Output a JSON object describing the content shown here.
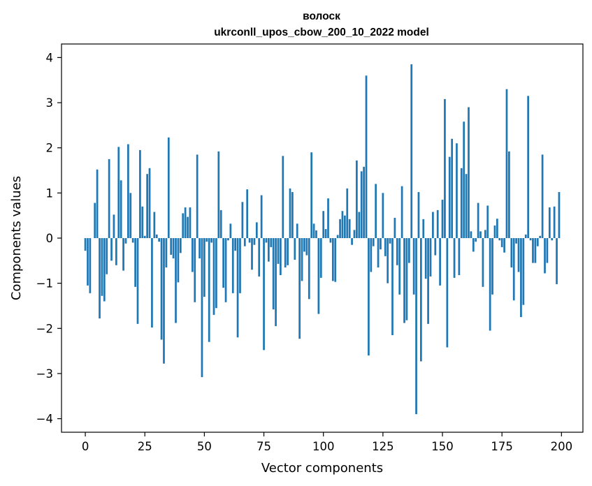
{
  "chart_data": {
    "type": "bar",
    "title": "волоск",
    "subtitle": "ukrconll_upos_cbow_200_10_2022 model",
    "xlabel": "Vector components",
    "ylabel": "Components values",
    "xlim": [
      -10,
      209
    ],
    "ylim": [
      -4.3,
      4.3
    ],
    "xticks": [
      0,
      25,
      50,
      75,
      100,
      125,
      150,
      175,
      200
    ],
    "yticks": [
      4,
      3,
      2,
      1,
      0,
      -1,
      -2,
      -3,
      -4
    ],
    "ytick_labels": [
      "4",
      "3",
      "2",
      "1",
      "0",
      "−1",
      "−2",
      "−3",
      "−4"
    ],
    "grid": false,
    "bar_color": "#1f77b4",
    "x": [
      0,
      1,
      2,
      3,
      4,
      5,
      6,
      7,
      8,
      9,
      10,
      11,
      12,
      13,
      14,
      15,
      16,
      17,
      18,
      19,
      20,
      21,
      22,
      23,
      24,
      25,
      26,
      27,
      28,
      29,
      30,
      31,
      32,
      33,
      34,
      35,
      36,
      37,
      38,
      39,
      40,
      41,
      42,
      43,
      44,
      45,
      46,
      47,
      48,
      49,
      50,
      51,
      52,
      53,
      54,
      55,
      56,
      57,
      58,
      59,
      60,
      61,
      62,
      63,
      64,
      65,
      66,
      67,
      68,
      69,
      70,
      71,
      72,
      73,
      74,
      75,
      76,
      77,
      78,
      79,
      80,
      81,
      82,
      83,
      84,
      85,
      86,
      87,
      88,
      89,
      90,
      91,
      92,
      93,
      94,
      95,
      96,
      97,
      98,
      99,
      100,
      101,
      102,
      103,
      104,
      105,
      106,
      107,
      108,
      109,
      110,
      111,
      112,
      113,
      114,
      115,
      116,
      117,
      118,
      119,
      120,
      121,
      122,
      123,
      124,
      125,
      126,
      127,
      128,
      129,
      130,
      131,
      132,
      133,
      134,
      135,
      136,
      137,
      138,
      139,
      140,
      141,
      142,
      143,
      144,
      145,
      146,
      147,
      148,
      149,
      150,
      151,
      152,
      153,
      154,
      155,
      156,
      157,
      158,
      159,
      160,
      161,
      162,
      163,
      164,
      165,
      166,
      167,
      168,
      169,
      170,
      171,
      172,
      173,
      174,
      175,
      176,
      177,
      178,
      179,
      180,
      181,
      182,
      183,
      184,
      185,
      186,
      187,
      188,
      189,
      190,
      191,
      192,
      193,
      194,
      195,
      196,
      197,
      198,
      199
    ],
    "values": [
      -0.28,
      -1.05,
      -1.22,
      0.0,
      0.78,
      1.52,
      -1.78,
      -1.28,
      -1.4,
      -0.8,
      1.75,
      -0.5,
      0.52,
      -0.6,
      2.02,
      1.28,
      -0.72,
      -0.12,
      2.08,
      1.0,
      -0.1,
      -1.08,
      -1.9,
      1.95,
      0.7,
      0.05,
      1.42,
      1.55,
      -1.98,
      0.58,
      0.08,
      -0.08,
      -2.25,
      -2.78,
      -0.65,
      2.23,
      -0.37,
      -0.45,
      -1.88,
      -0.98,
      -0.33,
      0.55,
      0.68,
      0.47,
      0.68,
      -0.75,
      -1.42,
      1.85,
      -0.45,
      -3.08,
      -1.3,
      -0.08,
      -2.3,
      -0.1,
      -1.7,
      -1.55,
      1.92,
      0.62,
      -1.1,
      -1.42,
      -0.05,
      0.32,
      -1.22,
      -0.28,
      -2.2,
      -1.22,
      0.8,
      -0.18,
      1.08,
      -0.1,
      -0.7,
      -0.15,
      0.35,
      -0.85,
      0.95,
      -2.48,
      -0.1,
      -0.52,
      -0.2,
      -1.58,
      -1.95,
      -0.57,
      -0.82,
      1.82,
      -0.65,
      -0.6,
      1.1,
      1.02,
      -0.48,
      0.32,
      -2.23,
      -0.95,
      -0.3,
      -0.38,
      -1.35,
      1.9,
      0.32,
      0.17,
      -1.68,
      -0.88,
      0.6,
      0.2,
      0.88,
      -0.1,
      -0.95,
      -0.97,
      0.07,
      0.42,
      0.6,
      0.5,
      1.1,
      0.42,
      -0.15,
      0.18,
      1.72,
      0.58,
      1.48,
      1.58,
      3.6,
      -2.6,
      -0.75,
      -0.18,
      1.2,
      -0.65,
      -0.25,
      1.0,
      -0.4,
      -1.0,
      -0.12,
      -2.15,
      0.45,
      -0.6,
      -1.25,
      1.15,
      -1.88,
      -1.82,
      -0.55,
      3.85,
      -1.25,
      -3.9,
      1.02,
      -2.73,
      0.42,
      -0.9,
      -1.9,
      -0.85,
      0.58,
      -0.38,
      0.62,
      -1.05,
      0.85,
      3.08,
      -2.42,
      1.8,
      2.2,
      -0.88,
      2.1,
      -0.82,
      1.55,
      2.58,
      1.42,
      2.9,
      0.15,
      -0.3,
      -0.08,
      0.78,
      0.15,
      -1.08,
      0.18,
      0.72,
      -2.05,
      -1.25,
      0.28,
      0.43,
      -0.05,
      -0.2,
      -0.32,
      3.3,
      1.92,
      -0.65,
      -1.38,
      -0.12,
      -0.75,
      -1.75,
      -1.48,
      0.08,
      3.15,
      -0.05,
      -0.55,
      -0.55,
      -0.18,
      0.05,
      1.85,
      -0.78,
      -0.55,
      0.68,
      -0.05,
      0.7,
      -1.02,
      1.02
    ]
  }
}
